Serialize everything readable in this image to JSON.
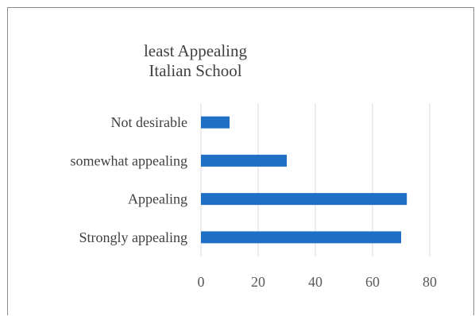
{
  "chart_data": {
    "type": "bar",
    "orientation": "horizontal",
    "title_lines": [
      "least Appealing",
      "Italian School"
    ],
    "categories": [
      "Not desirable",
      "somewhat appealing",
      "Appealing",
      "Strongly appealing"
    ],
    "values": [
      10,
      30,
      72,
      70
    ],
    "xlim": [
      0,
      80
    ],
    "xticks": [
      "0",
      "20",
      "40",
      "60",
      "80"
    ],
    "grid": true,
    "bar_color": "#1f6fc5",
    "grid_color": "#d9d9d9",
    "legend": "none"
  }
}
